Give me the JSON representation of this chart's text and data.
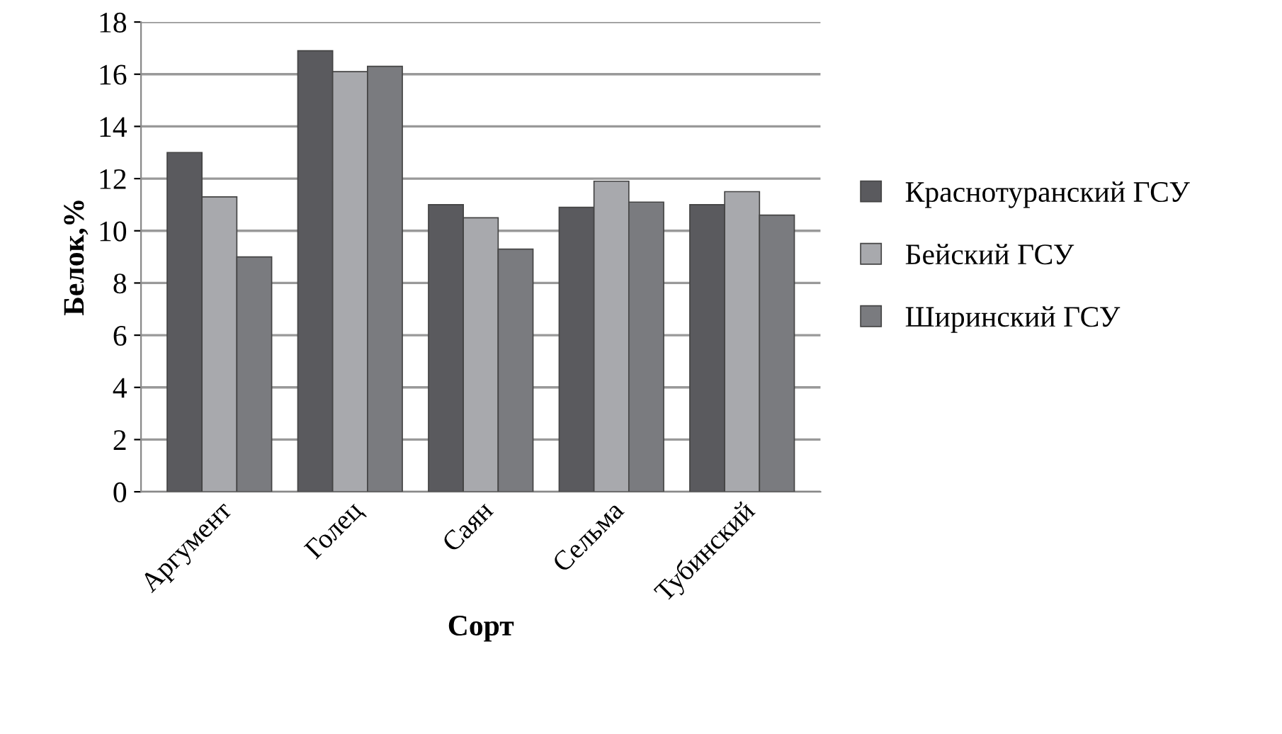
{
  "chart_data": {
    "type": "bar",
    "xlabel": "Сорт",
    "ylabel": "Белок,%",
    "categories": [
      "Аргумент",
      "Голец",
      "Саян",
      "Сельма",
      "Тубинский"
    ],
    "series": [
      {
        "name": "Краснотуранский ГСУ",
        "color": "#5a5a5e",
        "values": [
          13.0,
          16.9,
          11.0,
          10.9,
          11.0
        ]
      },
      {
        "name": "Бейский ГСУ",
        "color": "#a8a9ad",
        "values": [
          11.3,
          16.1,
          10.5,
          11.9,
          11.5
        ]
      },
      {
        "name": "Ширинский ГСУ",
        "color": "#7a7b7f",
        "values": [
          9.0,
          16.3,
          9.3,
          11.1,
          10.6
        ]
      }
    ],
    "ylim": [
      0,
      18
    ],
    "yticks": [
      0,
      2,
      4,
      6,
      8,
      10,
      12,
      14,
      16,
      18
    ],
    "grid": "y",
    "legend": "right"
  }
}
